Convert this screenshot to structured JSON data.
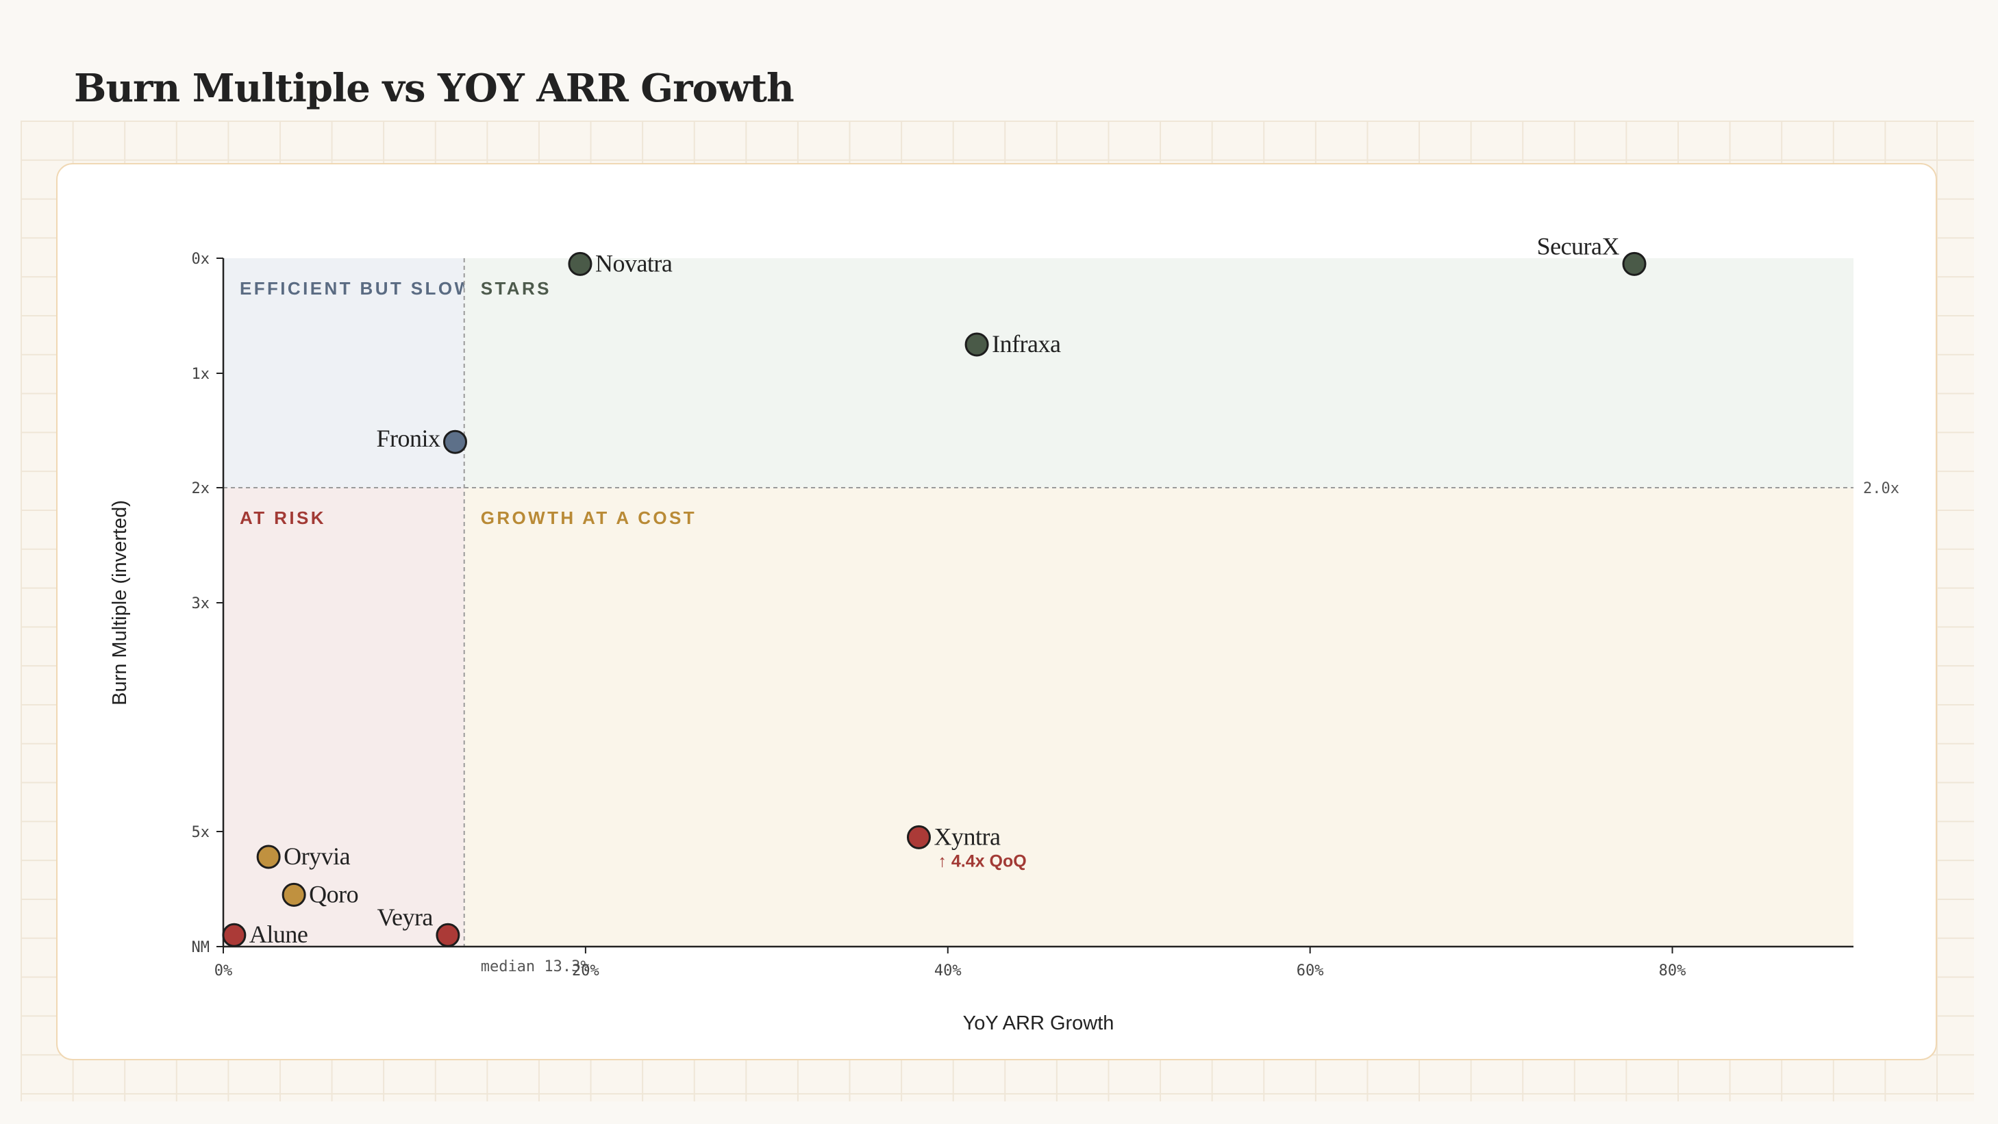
{
  "page": {
    "title": "Burn Multiple vs YOY ARR Growth"
  },
  "chart_data": {
    "type": "scatter",
    "title": "Burn Multiple vs YOY ARR Growth",
    "xlabel": "YoY ARR Growth",
    "ylabel": "Burn Multiple (inverted)",
    "xlim": [
      0,
      90
    ],
    "ylim": [
      0,
      6
    ],
    "y_inverted": true,
    "x_ticks": [
      {
        "value": 0,
        "label": "0%"
      },
      {
        "value": 20,
        "label": "20%"
      },
      {
        "value": 40,
        "label": "40%"
      },
      {
        "value": 60,
        "label": "60%"
      },
      {
        "value": 80,
        "label": "80%"
      }
    ],
    "y_ticks": [
      {
        "value": 0,
        "label": "0x"
      },
      {
        "value": 1,
        "label": "1x"
      },
      {
        "value": 2,
        "label": "2x"
      },
      {
        "value": 3,
        "label": "3x"
      },
      {
        "value": 5,
        "label": "5x"
      },
      {
        "value": 6,
        "label": "NM"
      }
    ],
    "median_x": {
      "value": 13.3,
      "label": "median 13.3%"
    },
    "threshold_y": {
      "value": 2.0,
      "label": "2.0x"
    },
    "quadrants": [
      {
        "label": "EFFICIENT BUT SLOW",
        "x_range": [
          0,
          13.3
        ],
        "y_range": [
          0,
          2
        ],
        "fill": "#eef1f5",
        "color": "#5a6b82"
      },
      {
        "label": "STARS",
        "x_range": [
          13.3,
          90
        ],
        "y_range": [
          0,
          2
        ],
        "fill": "#f1f5f1",
        "color": "#4d5a4c"
      },
      {
        "label": "AT RISK",
        "x_range": [
          0,
          13.3
        ],
        "y_range": [
          2,
          6
        ],
        "fill": "#f6eceb",
        "color": "#a23a35"
      },
      {
        "label": "GROWTH AT A COST",
        "x_range": [
          13.3,
          90
        ],
        "y_range": [
          2,
          6
        ],
        "fill": "#faf5ea",
        "color": "#b98a36"
      }
    ],
    "points": [
      {
        "name": "Novatra",
        "x": 19.7,
        "y": 0.05,
        "color": "#4a5a48",
        "label_side": "right"
      },
      {
        "name": "SecuraX",
        "x": 77.9,
        "y": 0.05,
        "color": "#4a5a48",
        "label_side": "left-up"
      },
      {
        "name": "Infraxa",
        "x": 41.6,
        "y": 0.75,
        "color": "#4a5a48",
        "label_side": "right"
      },
      {
        "name": "Fronix",
        "x": 12.8,
        "y": 1.6,
        "color": "#5d7089",
        "label_side": "left"
      },
      {
        "name": "Xyntra",
        "x": 38.4,
        "y": 5.05,
        "color": "#ab3a37",
        "label_side": "right",
        "note": "↑ 4.4x QoQ"
      },
      {
        "name": "Oryvia",
        "x": 2.5,
        "y": 5.22,
        "color": "#c0913f",
        "label_side": "right"
      },
      {
        "name": "Qoro",
        "x": 3.9,
        "y": 5.55,
        "color": "#c0913f",
        "label_side": "right"
      },
      {
        "name": "Veyra",
        "x": 12.4,
        "y": 5.9,
        "color": "#ab3a37",
        "label_side": "left-up"
      },
      {
        "name": "Alune",
        "x": 0.6,
        "y": 5.9,
        "color": "#ab3a37",
        "label_side": "right"
      }
    ],
    "grid": false
  }
}
